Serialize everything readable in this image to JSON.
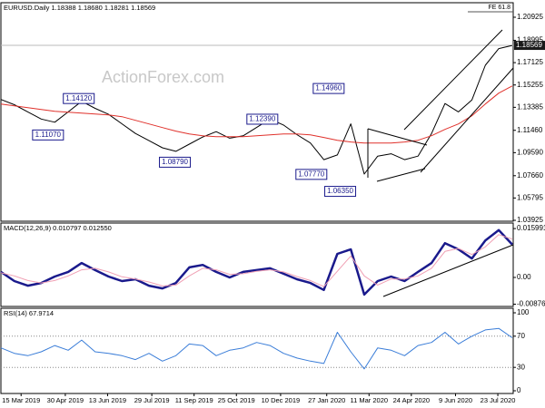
{
  "chart_data": [
    {
      "type": "line",
      "title": "EURUSD.Daily 1.18388 1.18680 1.18281 1.18569",
      "watermark": "ActionForex.com",
      "x": [
        "2019-02-22",
        "2019-03-08",
        "2019-03-22",
        "2019-04-05",
        "2019-04-19",
        "2019-05-03",
        "2019-05-17",
        "2019-05-31",
        "2019-06-14",
        "2019-06-28",
        "2019-07-12",
        "2019-07-26",
        "2019-08-09",
        "2019-08-23",
        "2019-09-06",
        "2019-09-20",
        "2019-10-04",
        "2019-10-18",
        "2019-11-01",
        "2019-11-15",
        "2019-11-29",
        "2019-12-13",
        "2019-12-27",
        "2020-01-10",
        "2020-01-24",
        "2020-02-07",
        "2020-02-21",
        "2020-03-06",
        "2020-03-20",
        "2020-04-03",
        "2020-04-17",
        "2020-05-01",
        "2020-05-15",
        "2020-05-29",
        "2020-06-12",
        "2020-06-26",
        "2020-07-10",
        "2020-07-24",
        "2020-08-07"
      ],
      "series": [
        {
          "color": "#000000",
          "values": [
            1.1404,
            1.136,
            1.13,
            1.124,
            1.1214,
            1.13,
            1.1389,
            1.133,
            1.128,
            1.12,
            1.112,
            1.106,
            1.1,
            1.097,
            1.103,
            1.109,
            1.1135,
            1.108,
            1.11,
            1.117,
            1.124,
            1.119,
            1.111,
            1.104,
            1.09,
            1.094,
            1.12,
            1.078,
            1.093,
            1.095,
            1.09,
            1.093,
            1.112,
            1.137,
            1.13,
            1.14,
            1.169,
            1.183,
            1.18569
          ]
        },
        {
          "color": "#e0312b",
          "values": [
            1.1366,
            1.1351,
            1.1336,
            1.132,
            1.1305,
            1.1298,
            1.129,
            1.1283,
            1.1275,
            1.126,
            1.123,
            1.1199,
            1.1169,
            1.1139,
            1.1116,
            1.1101,
            1.1093,
            1.1093,
            1.1093,
            1.1101,
            1.1108,
            1.1116,
            1.1116,
            1.1108,
            1.1086,
            1.1063,
            1.1048,
            1.104,
            1.104,
            1.104,
            1.1048,
            1.1063,
            1.1101,
            1.1154,
            1.1199,
            1.1268,
            1.1366,
            1.1457,
            1.1517
          ]
        }
      ],
      "annotations": [
        {
          "label": "1.11070",
          "value": 1.1107,
          "x": "2019-04-12"
        },
        {
          "label": "1.14120",
          "value": 1.1412,
          "x": "2019-05-14"
        },
        {
          "label": "1.08790",
          "value": 1.0879,
          "x": "2019-08-22"
        },
        {
          "label": "1.12390",
          "value": 1.1239,
          "x": "2019-11-21"
        },
        {
          "label": "1.07770",
          "value": 1.0777,
          "x": "2020-01-11"
        },
        {
          "label": "1.14960",
          "value": 1.1496,
          "x": "2020-01-29"
        },
        {
          "label": "1.06350",
          "value": 1.0635,
          "x": "2020-02-10"
        }
      ],
      "fe_line": {
        "label": "FE 61.8",
        "value": 1.2138
      },
      "price_line": 1.18569,
      "xlim": [
        "2019-02-22",
        "2020-08-08"
      ],
      "ylim": [
        1.0385,
        1.2214
      ],
      "yticks": [
        1.20925,
        1.18995,
        1.17125,
        1.15255,
        1.13385,
        {
          "value": 1.1146,
          "label": "1.11460"
        },
        {
          "value": 1.0959,
          "label": "1.09590"
        },
        {
          "value": 1.0766,
          "label": "1.07660"
        },
        1.05795,
        1.03925
      ]
    },
    {
      "type": "line",
      "title": "MACD(12,26,9) 0.010797 0.012550",
      "x": [
        "2019-02-22",
        "2019-03-08",
        "2019-03-22",
        "2019-04-05",
        "2019-04-19",
        "2019-05-03",
        "2019-05-17",
        "2019-05-31",
        "2019-06-14",
        "2019-06-28",
        "2019-07-12",
        "2019-07-26",
        "2019-08-09",
        "2019-08-23",
        "2019-09-06",
        "2019-09-20",
        "2019-10-04",
        "2019-10-18",
        "2019-11-01",
        "2019-11-15",
        "2019-11-29",
        "2019-12-13",
        "2019-12-27",
        "2020-01-10",
        "2020-01-24",
        "2020-02-07",
        "2020-02-21",
        "2020-03-06",
        "2020-03-20",
        "2020-04-03",
        "2020-04-17",
        "2020-05-01",
        "2020-05-15",
        "2020-05-29",
        "2020-06-12",
        "2020-06-26",
        "2020-07-10",
        "2020-07-24",
        "2020-08-07"
      ],
      "series": [
        {
          "color": "#1a1a8c",
          "width": 2.5,
          "values": [
            0.0018,
            -0.0012,
            -0.0027,
            -0.0018,
            0.0003,
            0.0018,
            0.0047,
            0.0024,
            0.0003,
            -0.0012,
            -0.0006,
            -0.0027,
            -0.0036,
            -0.0018,
            0.0033,
            0.0041,
            0.0018,
            0,
            0.0018,
            0.0024,
            0.003,
            0.0012,
            -0.0006,
            -0.0018,
            -0.0041,
            0.0077,
            0.0092,
            -0.0056,
            -0.0012,
            0.0003,
            -0.0012,
            0.0018,
            0.0047,
            0.0112,
            0.0092,
            0.0062,
            0.0121,
            0.0155,
            0.010797
          ]
        },
        {
          "color": "#f0a0b4",
          "width": 1,
          "values": [
            0.0015,
            0.0005,
            -0.001,
            -0.0018,
            -0.001,
            0.0005,
            0.0025,
            0.003,
            0.0018,
            0.0002,
            -0.0005,
            -0.0015,
            -0.0028,
            -0.0025,
            0.0005,
            0.003,
            0.0025,
            0.001,
            0.0012,
            0.002,
            0.0025,
            0.0018,
            0.0003,
            -0.001,
            -0.003,
            0.002,
            0.007,
            0.0005,
            -0.0025,
            -0.0005,
            -0.0005,
            0.0005,
            0.003,
            0.0085,
            0.0095,
            0.0075,
            0.01,
            0.014,
            0.01255
          ]
        }
      ],
      "xlim": [
        "2019-02-22",
        "2020-08-08"
      ],
      "ylim": [
        -0.0095,
        0.0178
      ],
      "yticks": [
        0.015991,
        {
          "value": 0,
          "label": "0.00"
        },
        -0.00876
      ]
    },
    {
      "type": "line",
      "title": "RSI(14) 67.9714",
      "x": [
        "2019-02-22",
        "2019-03-08",
        "2019-03-22",
        "2019-04-05",
        "2019-04-19",
        "2019-05-03",
        "2019-05-17",
        "2019-05-31",
        "2019-06-14",
        "2019-06-28",
        "2019-07-12",
        "2019-07-26",
        "2019-08-09",
        "2019-08-23",
        "2019-09-06",
        "2019-09-20",
        "2019-10-04",
        "2019-10-18",
        "2019-11-01",
        "2019-11-15",
        "2019-11-29",
        "2019-12-13",
        "2019-12-27",
        "2020-01-10",
        "2020-01-24",
        "2020-02-07",
        "2020-02-21",
        "2020-03-06",
        "2020-03-20",
        "2020-04-03",
        "2020-04-17",
        "2020-05-01",
        "2020-05-15",
        "2020-05-29",
        "2020-06-12",
        "2020-06-26",
        "2020-07-10",
        "2020-07-24",
        "2020-08-07"
      ],
      "series": [
        {
          "color": "#3a7dd8",
          "width": 1,
          "values": [
            55,
            48,
            45,
            50,
            58,
            52,
            65,
            50,
            48,
            45,
            40,
            48,
            38,
            45,
            60,
            58,
            45,
            52,
            55,
            62,
            58,
            48,
            42,
            38,
            35,
            75,
            50,
            28,
            55,
            52,
            45,
            58,
            62,
            75,
            60,
            70,
            78,
            80,
            67.9714
          ]
        }
      ],
      "levels": [
        70,
        30
      ],
      "xlim": [
        "2019-02-22",
        "2020-08-08"
      ],
      "ylim": [
        -3.5,
        105.8
      ],
      "yticks": [
        100,
        70,
        30,
        0
      ],
      "xticks": [
        {
          "value": "2019-03-15",
          "label": "15 Mar 2019"
        },
        {
          "value": "2019-04-30",
          "label": "30 Apr 2019"
        },
        {
          "value": "2019-06-13",
          "label": "13 Jun 2019"
        },
        {
          "value": "2019-07-29",
          "label": "29 Jul 2019"
        },
        {
          "value": "2019-09-11",
          "label": "11 Sep 2019"
        },
        {
          "value": "2019-10-25",
          "label": "25 Oct 2019"
        },
        {
          "value": "2019-12-10",
          "label": "10 Dec 2019"
        },
        {
          "value": "2020-01-27",
          "label": "27 Jan 2020"
        },
        {
          "value": "2020-03-11",
          "label": "11 Mar 2020"
        },
        {
          "value": "2020-04-24",
          "label": "24 Apr 2020"
        },
        {
          "value": "2020-06-09",
          "label": "9 Jun 2020"
        },
        {
          "value": "2020-07-23",
          "label": "23 Jul 2020"
        }
      ]
    }
  ]
}
